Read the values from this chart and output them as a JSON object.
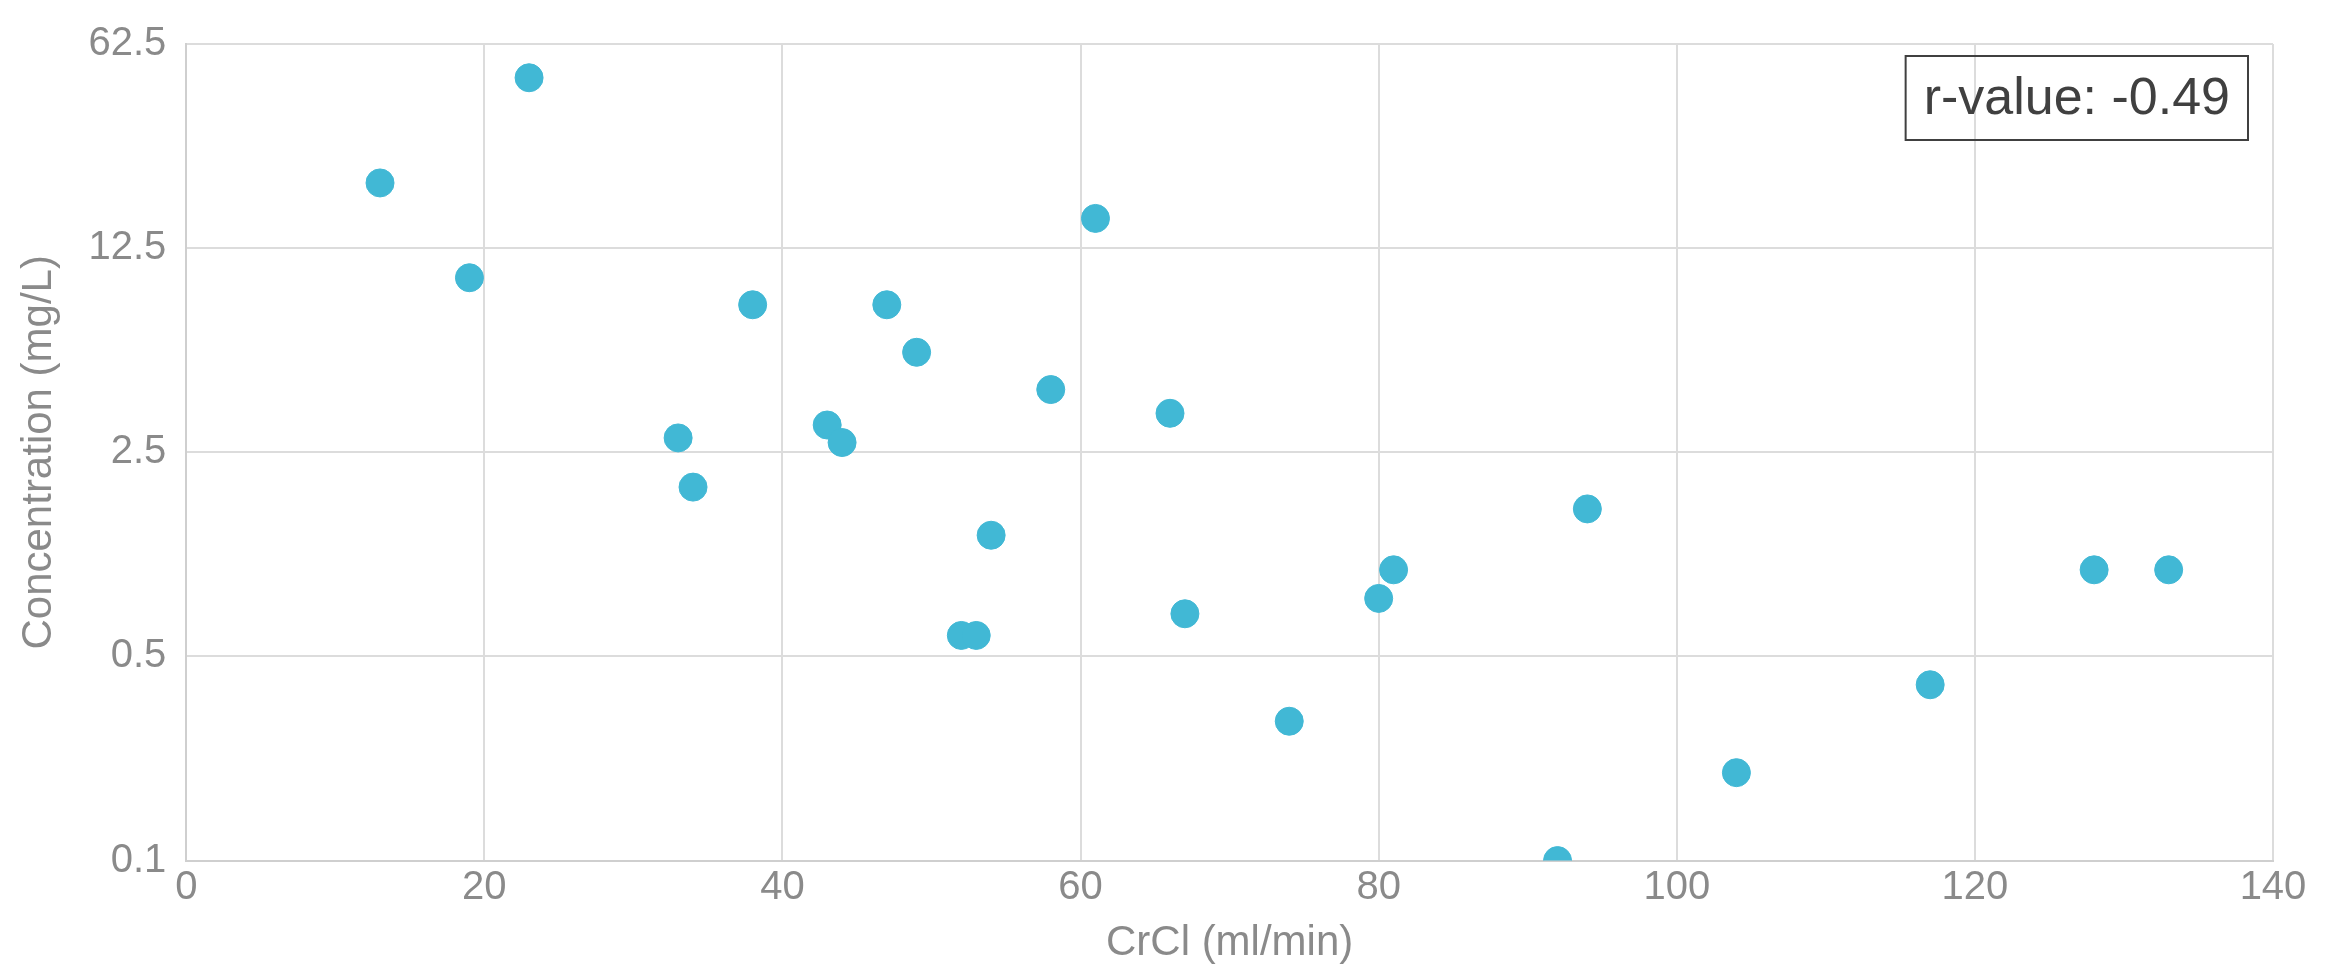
{
  "chart_data": {
    "type": "scatter",
    "xlabel": "CrCl (ml/min)",
    "ylabel": "Concentration (mg/L)",
    "annotations": [
      "r-value: -0.49"
    ],
    "log": "y",
    "grid": true,
    "legend": false,
    "marker": "circle",
    "xlim": [
      0,
      140
    ],
    "xticks": [
      0,
      20,
      40,
      60,
      80,
      100,
      120,
      140
    ],
    "ylim": [
      0.1,
      62.5
    ],
    "yticks": [
      0.1,
      0.5,
      2.5,
      12.5,
      62.5
    ],
    "x": [
      13,
      23,
      19,
      38,
      47,
      49,
      61,
      58,
      66,
      43,
      44,
      33,
      34,
      54,
      94,
      81,
      80,
      67,
      52,
      53,
      74,
      92,
      104,
      117,
      128,
      133
    ],
    "series": [
      {
        "color": "#41b8d5",
        "values": [
          20.9,
          47.9,
          9.9,
          8.0,
          8.0,
          5.5,
          15.8,
          4.1,
          3.4,
          3.1,
          2.7,
          2.8,
          1.9,
          1.3,
          1.6,
          0.99,
          0.79,
          0.7,
          0.59,
          0.59,
          0.3,
          0.1,
          0.2,
          0.4,
          0.99,
          0.99
        ]
      }
    ]
  }
}
